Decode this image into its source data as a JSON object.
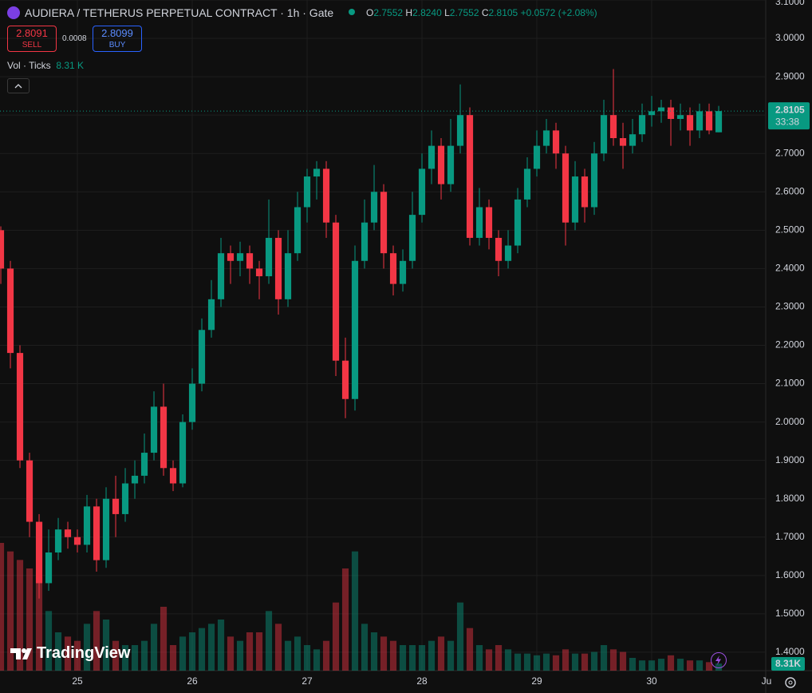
{
  "header": {
    "title": "AUDIERA / TETHERUS PERPETUAL CONTRACT · 1h · Gate",
    "o_key": "O",
    "o_val": "2.7552",
    "h_key": "H",
    "h_val": "2.8240",
    "l_key": "L",
    "l_val": "2.7552",
    "c_key": "C",
    "c_val": "2.8105",
    "change": "+0.0572 (+2.08%)",
    "sell_price": "2.8091",
    "sell": "SELL",
    "spread": "0.0008",
    "buy_price": "2.8099",
    "buy": "BUY",
    "vol_title": "Vol · Ticks",
    "vol_value": "8.31 K",
    "logo": "TradingView"
  },
  "chart_data": {
    "type": "candlestick",
    "x": [
      -16,
      -14,
      -12,
      -10,
      -8,
      -6,
      -4,
      -2,
      0,
      2,
      4,
      6,
      8,
      10,
      12,
      14,
      16,
      18,
      20,
      22,
      24,
      26,
      28,
      30,
      32,
      34,
      36,
      38,
      40,
      42,
      44,
      46,
      48,
      50,
      52,
      54,
      56,
      58,
      60,
      62,
      64,
      66,
      68,
      70,
      72,
      74,
      76,
      78,
      80,
      82,
      84,
      86,
      88,
      90,
      92,
      94,
      96,
      98,
      100,
      102,
      104,
      106,
      108,
      110,
      112,
      114,
      116,
      118,
      120,
      122,
      124,
      126,
      128,
      130,
      132,
      134
    ],
    "open": [
      2.5,
      2.4,
      2.18,
      1.9,
      1.74,
      1.58,
      1.66,
      1.72,
      1.7,
      1.68,
      1.78,
      1.64,
      1.8,
      1.76,
      1.84,
      1.86,
      1.92,
      2.04,
      1.88,
      1.84,
      2.0,
      2.1,
      2.24,
      2.32,
      2.44,
      2.42,
      2.44,
      2.4,
      2.38,
      2.48,
      2.32,
      2.44,
      2.56,
      2.64,
      2.66,
      2.52,
      2.16,
      2.06,
      2.42,
      2.52,
      2.6,
      2.44,
      2.36,
      2.42,
      2.54,
      2.66,
      2.72,
      2.62,
      2.72,
      2.8,
      2.48,
      2.56,
      2.48,
      2.42,
      2.46,
      2.58,
      2.66,
      2.72,
      2.76,
      2.7,
      2.52,
      2.64,
      2.56,
      2.7,
      2.8,
      2.74,
      2.72,
      2.75,
      2.8,
      2.81,
      2.82,
      2.79,
      2.8,
      2.76,
      2.81,
      2.7552
    ],
    "high": [
      2.51,
      2.42,
      2.2,
      1.92,
      1.76,
      1.72,
      1.75,
      1.74,
      1.72,
      1.81,
      1.8,
      1.83,
      1.86,
      1.88,
      1.9,
      1.97,
      2.08,
      2.1,
      1.9,
      2.02,
      2.14,
      2.27,
      2.37,
      2.48,
      2.46,
      2.47,
      2.46,
      2.42,
      2.58,
      2.5,
      2.5,
      2.6,
      2.66,
      2.68,
      2.68,
      2.54,
      2.22,
      2.46,
      2.58,
      2.67,
      2.62,
      2.46,
      2.45,
      2.6,
      2.7,
      2.76,
      2.74,
      2.79,
      2.88,
      2.82,
      2.61,
      2.58,
      2.5,
      2.5,
      2.61,
      2.69,
      2.76,
      2.79,
      2.78,
      2.72,
      2.68,
      2.66,
      2.73,
      2.84,
      2.92,
      2.78,
      2.79,
      2.83,
      2.85,
      2.84,
      2.84,
      2.83,
      2.82,
      2.83,
      2.83,
      2.824
    ],
    "low": [
      2.36,
      2.14,
      1.88,
      1.7,
      1.54,
      1.56,
      1.64,
      1.67,
      1.66,
      1.66,
      1.61,
      1.62,
      1.7,
      1.74,
      1.8,
      1.84,
      1.9,
      1.86,
      1.82,
      1.83,
      1.98,
      2.08,
      2.22,
      2.3,
      2.36,
      2.38,
      2.36,
      2.32,
      2.36,
      2.28,
      2.3,
      2.42,
      2.52,
      2.58,
      2.48,
      2.12,
      2.01,
      2.03,
      2.4,
      2.5,
      2.4,
      2.33,
      2.34,
      2.4,
      2.52,
      2.62,
      2.58,
      2.6,
      2.7,
      2.46,
      2.46,
      2.45,
      2.38,
      2.4,
      2.44,
      2.56,
      2.64,
      2.7,
      2.66,
      2.46,
      2.5,
      2.52,
      2.54,
      2.68,
      2.72,
      2.66,
      2.7,
      2.73,
      2.77,
      2.78,
      2.72,
      2.76,
      2.72,
      2.74,
      2.75,
      2.7552
    ],
    "close": [
      2.4,
      2.18,
      1.9,
      1.74,
      1.58,
      1.66,
      1.72,
      1.7,
      1.68,
      1.78,
      1.64,
      1.8,
      1.76,
      1.84,
      1.86,
      1.92,
      2.04,
      1.88,
      1.84,
      2.0,
      2.1,
      2.24,
      2.32,
      2.44,
      2.42,
      2.44,
      2.4,
      2.38,
      2.48,
      2.32,
      2.44,
      2.56,
      2.64,
      2.66,
      2.52,
      2.16,
      2.06,
      2.42,
      2.52,
      2.6,
      2.44,
      2.36,
      2.42,
      2.54,
      2.66,
      2.72,
      2.62,
      2.72,
      2.8,
      2.48,
      2.56,
      2.48,
      2.42,
      2.46,
      2.58,
      2.66,
      2.72,
      2.76,
      2.7,
      2.52,
      2.64,
      2.56,
      2.7,
      2.8,
      2.74,
      2.72,
      2.75,
      2.8,
      2.81,
      2.82,
      2.79,
      2.8,
      2.76,
      2.81,
      2.76,
      2.8105
    ],
    "volume": [
      150,
      140,
      130,
      120,
      110,
      70,
      45,
      40,
      35,
      55,
      70,
      60,
      35,
      30,
      30,
      35,
      55,
      75,
      30,
      40,
      45,
      50,
      55,
      60,
      40,
      35,
      45,
      45,
      70,
      55,
      35,
      40,
      30,
      25,
      35,
      80,
      120,
      140,
      55,
      45,
      40,
      35,
      30,
      30,
      30,
      35,
      40,
      35,
      80,
      50,
      30,
      25,
      30,
      25,
      20,
      20,
      18,
      20,
      18,
      25,
      20,
      20,
      22,
      30,
      25,
      22,
      15,
      12,
      12,
      14,
      18,
      14,
      12,
      12,
      10,
      8.31
    ],
    "up_color": "#089981",
    "down_color": "#f23645",
    "xlim": [
      -16.17,
      143.83
    ],
    "xticks": [
      {
        "value": 0,
        "label": "25"
      },
      {
        "value": 24,
        "label": "26"
      },
      {
        "value": 48,
        "label": "27"
      },
      {
        "value": 72,
        "label": "28"
      },
      {
        "value": 96,
        "label": "29"
      },
      {
        "value": 120,
        "label": "30"
      },
      {
        "value": 144,
        "label": "Ju"
      }
    ],
    "ylim": [
      1.352,
      3.1
    ],
    "yticks": [
      {
        "value": 1.4,
        "label": "1.4000"
      },
      {
        "value": 1.5,
        "label": "1.5000"
      },
      {
        "value": 1.6,
        "label": "1.6000"
      },
      {
        "value": 1.7,
        "label": "1.7000"
      },
      {
        "value": 1.8,
        "label": "1.8000"
      },
      {
        "value": 1.9,
        "label": "1.9000"
      },
      {
        "value": 2,
        "label": "2.0000"
      },
      {
        "value": 2.1,
        "label": "2.1000"
      },
      {
        "value": 2.2,
        "label": "2.2000"
      },
      {
        "value": 2.3,
        "label": "2.3000"
      },
      {
        "value": 2.4,
        "label": "2.4000"
      },
      {
        "value": 2.5,
        "label": "2.5000"
      },
      {
        "value": 2.6,
        "label": "2.6000"
      },
      {
        "value": 2.7,
        "label": "2.7000"
      },
      {
        "value": 2.8,
        "label": "2.8000"
      },
      {
        "value": 2.9,
        "label": "2.9000"
      },
      {
        "value": 3,
        "label": "3.0000"
      },
      {
        "value": 3.1,
        "label": "3.1000"
      }
    ],
    "grid": true,
    "last_price": {
      "value": 2.8105,
      "label": "2.8105"
    },
    "countdown": "33:38",
    "volume_tag": "8.31K"
  }
}
